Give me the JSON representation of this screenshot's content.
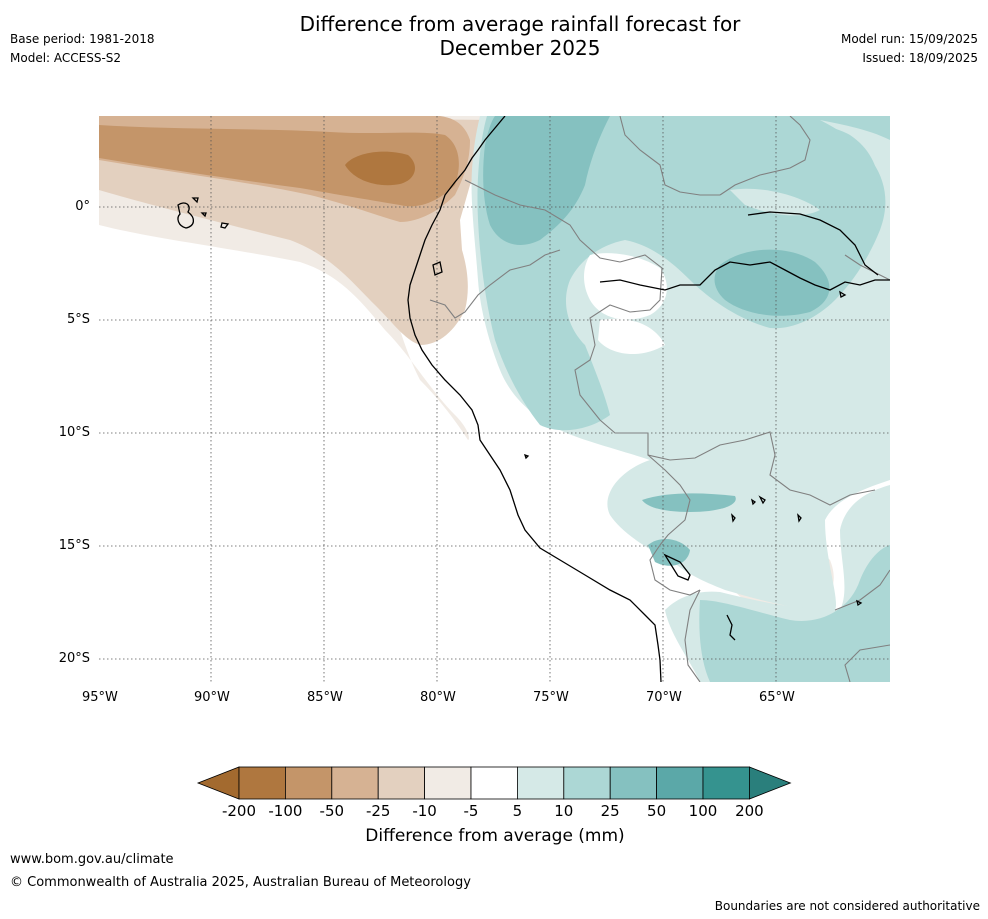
{
  "header": {
    "title_line1": "Difference from average rainfall forecast for",
    "title_line2": "December 2025",
    "base_period": "Base period: 1981-2018",
    "model": "Model: ACCESS-S2",
    "model_run": "Model run: 15/09/2025",
    "issued": "Issued: 18/09/2025"
  },
  "map": {
    "lon_ticks": [
      "95°W",
      "90°W",
      "85°W",
      "80°W",
      "75°W",
      "70°W",
      "65°W"
    ],
    "lat_ticks": [
      "0°",
      "5°S",
      "10°S",
      "15°S",
      "20°S"
    ]
  },
  "legend": {
    "title": "Difference from average (mm)",
    "levels": [
      "-200",
      "-100",
      "-50",
      "-25",
      "-10",
      "-5",
      "5",
      "10",
      "25",
      "50",
      "100",
      "200"
    ],
    "colors": [
      "#a36a2f",
      "#af773f",
      "#c49569",
      "#d6b293",
      "#e3d0bf",
      "#f1ebe5",
      "#ffffff",
      "#d5e9e7",
      "#acd7d5",
      "#85c1c0",
      "#5ba8a8",
      "#35938f",
      "#2a7f7c"
    ]
  },
  "footer": {
    "url": "www.bom.gov.au/climate",
    "copyright": "© Commonwealth of Australia 2025, Australian Bureau of Meteorology",
    "disclaimer": "Boundaries are not considered authoritative"
  }
}
